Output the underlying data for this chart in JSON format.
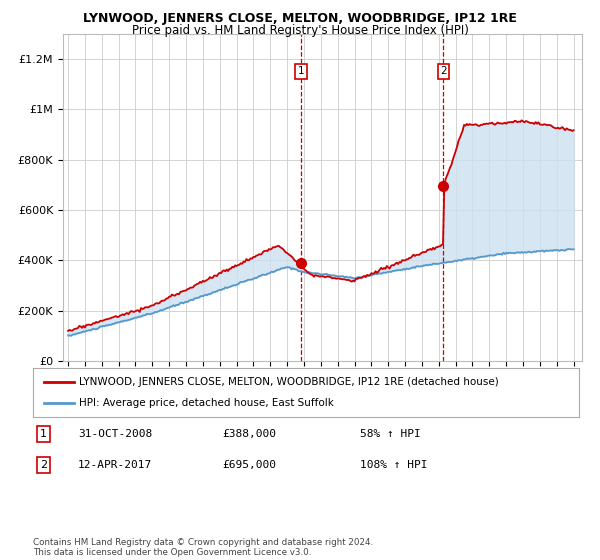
{
  "title": "LYNWOOD, JENNERS CLOSE, MELTON, WOODBRIDGE, IP12 1RE",
  "subtitle": "Price paid vs. HM Land Registry's House Price Index (HPI)",
  "ylabel_ticks": [
    "£0",
    "£200K",
    "£400K",
    "£600K",
    "£800K",
    "£1M",
    "£1.2M"
  ],
  "ytick_vals": [
    0,
    200000,
    400000,
    600000,
    800000,
    1000000,
    1200000
  ],
  "ylim": [
    0,
    1300000
  ],
  "xlim_start": 1994.7,
  "xlim_end": 2025.5,
  "sale1_x": 2008.83,
  "sale1_y": 388000,
  "sale1_label": "1",
  "sale1_date": "31-OCT-2008",
  "sale1_price": "£388,000",
  "sale1_hpi": "58% ↑ HPI",
  "sale2_x": 2017.28,
  "sale2_y": 695000,
  "sale2_label": "2",
  "sale2_date": "12-APR-2017",
  "sale2_price": "£695,000",
  "sale2_hpi": "108% ↑ HPI",
  "red_color": "#cc0000",
  "blue_color": "#5599cc",
  "shade_color": "#cce0f0",
  "background_color": "#ffffff",
  "grid_color": "#cccccc",
  "legend_label_red": "LYNWOOD, JENNERS CLOSE, MELTON, WOODBRIDGE, IP12 1RE (detached house)",
  "legend_label_blue": "HPI: Average price, detached house, East Suffolk",
  "footer": "Contains HM Land Registry data © Crown copyright and database right 2024.\nThis data is licensed under the Open Government Licence v3.0.",
  "dashed_color": "#cc0000",
  "label_box_color": "#cc0000",
  "title_fontsize": 9,
  "subtitle_fontsize": 8.5,
  "tick_fontsize": 8,
  "legend_fontsize": 7.5,
  "table_fontsize": 8
}
